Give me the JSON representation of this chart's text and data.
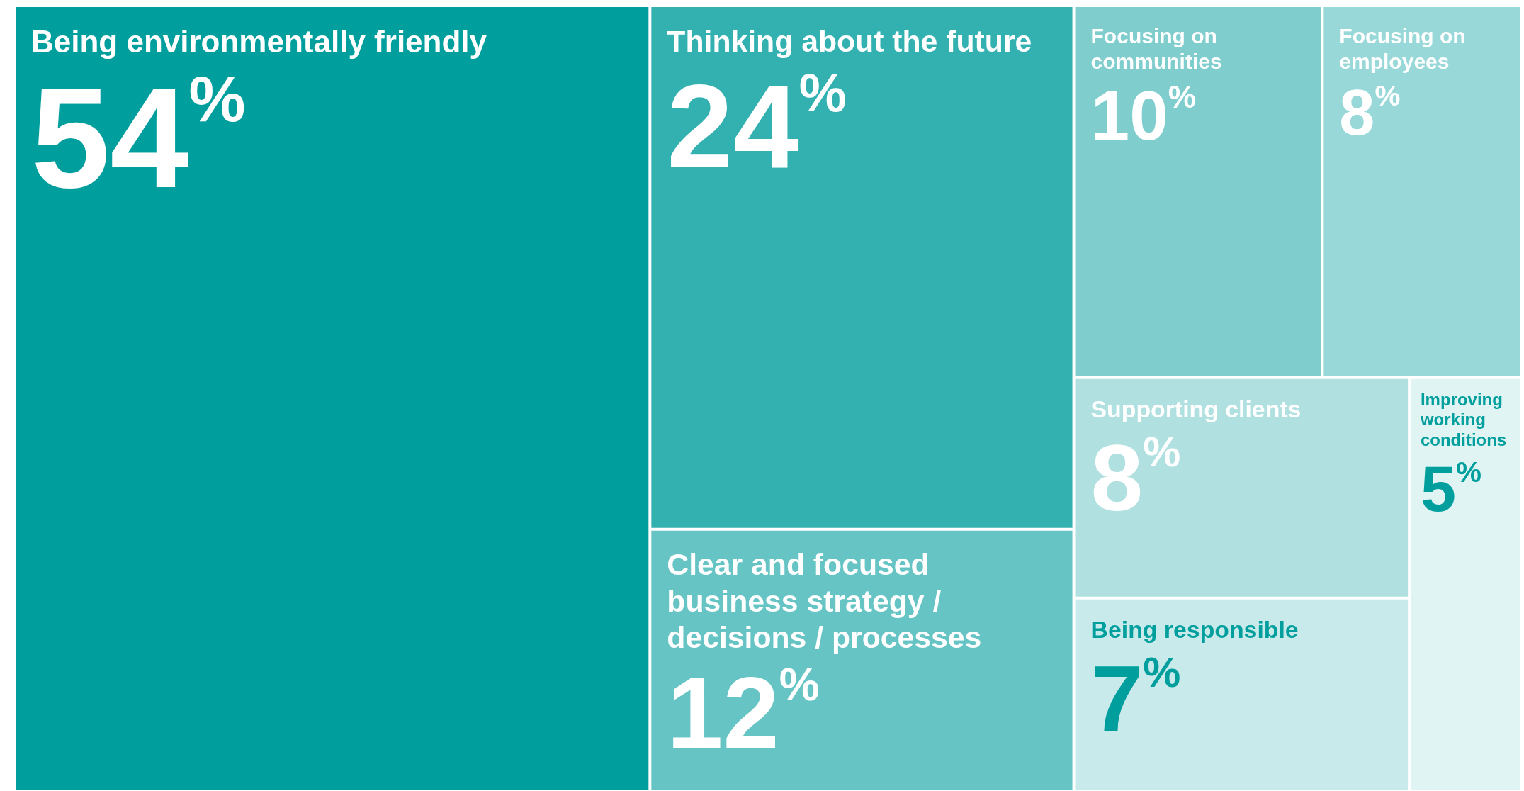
{
  "chart_data": {
    "type": "other",
    "categories": [
      "Being environmentally friendly",
      "Thinking about the future",
      "Clear and focused business strategy / decisions / processes",
      "Focusing on communities",
      "Focusing on employees",
      "Supporting clients",
      "Being responsible",
      "Improving working conditions"
    ],
    "values": [
      54,
      24,
      12,
      10,
      8,
      8,
      7,
      5
    ],
    "value_labels": [
      "54%",
      "24%",
      "12%",
      "10%",
      "8%",
      "8%",
      "7%",
      "5%"
    ],
    "colors": [
      "#009f9e",
      "#33b1b1",
      "#66c4c4",
      "#7fcdcd",
      "#99d8d8",
      "#b0e0e0",
      "#c8eaea",
      "#e0f4f4"
    ]
  }
}
